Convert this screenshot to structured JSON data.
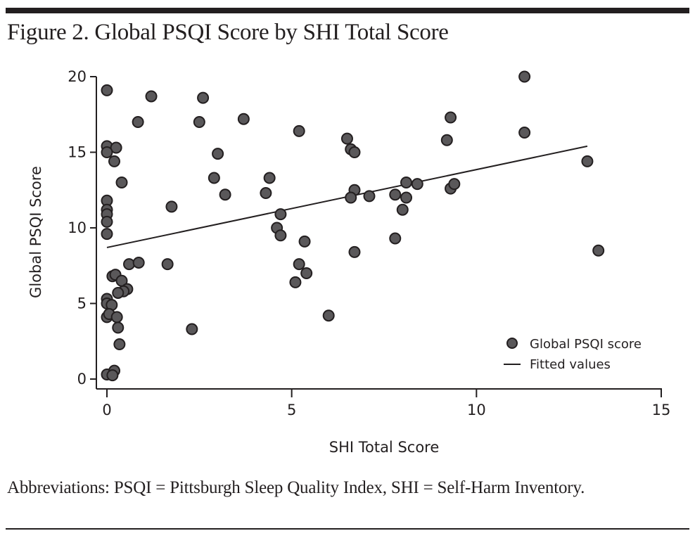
{
  "figure": {
    "title": "Figure 2. Global PSQI Score by SHI Total Score",
    "note": "Abbreviations: PSQI = Pittsburgh Sleep Quality Index, SHI = Self-Harm Inventory."
  },
  "colors": {
    "point_fill": "#5a585a",
    "point_stroke": "#231f20",
    "line": "#231f20",
    "rule": "#231f20"
  },
  "chart_data": {
    "type": "scatter",
    "title": "Figure 2. Global PSQI Score by SHI Total Score",
    "xlabel": "SHI Total Score",
    "ylabel": "Global PSQI Score",
    "xlim": [
      0,
      15
    ],
    "ylim": [
      0,
      20
    ],
    "xticks": [
      "0",
      "5",
      "10",
      "15"
    ],
    "xtick_values": [
      0,
      5,
      10,
      15
    ],
    "yticks": [
      "0",
      "5",
      "10",
      "15",
      "20"
    ],
    "ytick_values": [
      0,
      5,
      10,
      15,
      20
    ],
    "grid": false,
    "legend": {
      "placement": "bottom-right",
      "entries": [
        "Global PSQI score",
        "Fitted values"
      ]
    },
    "series": [
      {
        "name": "Global PSQI score",
        "kind": "scatter",
        "points": [
          [
            0,
            19.1
          ],
          [
            1.2,
            18.7
          ],
          [
            2.6,
            18.6
          ],
          [
            0.84,
            17.0
          ],
          [
            2.5,
            17.0
          ],
          [
            3.7,
            17.2
          ],
          [
            11.3,
            20.0
          ],
          [
            9.3,
            17.3
          ],
          [
            5.2,
            16.4
          ],
          [
            0,
            15.4
          ],
          [
            0.25,
            15.3
          ],
          [
            0,
            15.0
          ],
          [
            0.2,
            14.4
          ],
          [
            3.0,
            14.9
          ],
          [
            6.5,
            15.9
          ],
          [
            6.6,
            15.2
          ],
          [
            6.7,
            15.0
          ],
          [
            9.2,
            15.8
          ],
          [
            11.3,
            16.3
          ],
          [
            13.0,
            14.4
          ],
          [
            0.4,
            13.0
          ],
          [
            2.9,
            13.3
          ],
          [
            4.4,
            13.3
          ],
          [
            3.2,
            12.2
          ],
          [
            4.3,
            12.3
          ],
          [
            6.7,
            12.5
          ],
          [
            6.6,
            12.0
          ],
          [
            7.1,
            12.1
          ],
          [
            7.8,
            12.2
          ],
          [
            8.1,
            13.0
          ],
          [
            8.4,
            12.9
          ],
          [
            8.1,
            12.0
          ],
          [
            8.0,
            11.2
          ],
          [
            9.3,
            12.6
          ],
          [
            9.4,
            12.9
          ],
          [
            0,
            11.8
          ],
          [
            0,
            11.2
          ],
          [
            0,
            10.9
          ],
          [
            0,
            10.4
          ],
          [
            0,
            9.6
          ],
          [
            1.75,
            11.4
          ],
          [
            4.7,
            10.9
          ],
          [
            4.6,
            10.0
          ],
          [
            4.7,
            9.5
          ],
          [
            5.35,
            9.1
          ],
          [
            7.8,
            9.3
          ],
          [
            6.7,
            8.4
          ],
          [
            13.3,
            8.5
          ],
          [
            0.6,
            7.6
          ],
          [
            0.86,
            7.7
          ],
          [
            1.64,
            7.6
          ],
          [
            5.2,
            7.6
          ],
          [
            5.4,
            7.0
          ],
          [
            5.1,
            6.4
          ],
          [
            0.15,
            6.8
          ],
          [
            0.23,
            6.9
          ],
          [
            0.4,
            6.5
          ],
          [
            0.55,
            5.95
          ],
          [
            0.45,
            5.8
          ],
          [
            0.3,
            5.7
          ],
          [
            0,
            5.3
          ],
          [
            0,
            5.0
          ],
          [
            0.13,
            4.9
          ],
          [
            0,
            4.1
          ],
          [
            0.06,
            4.3
          ],
          [
            0.27,
            4.1
          ],
          [
            0.3,
            3.4
          ],
          [
            0.34,
            2.3
          ],
          [
            2.3,
            3.3
          ],
          [
            6.0,
            4.2
          ],
          [
            0,
            0.3
          ],
          [
            0.2,
            0.55
          ],
          [
            0.15,
            0.25
          ]
        ]
      },
      {
        "name": "Fitted values",
        "kind": "line",
        "points": [
          [
            0,
            8.7
          ],
          [
            13.0,
            15.4
          ]
        ]
      }
    ]
  }
}
